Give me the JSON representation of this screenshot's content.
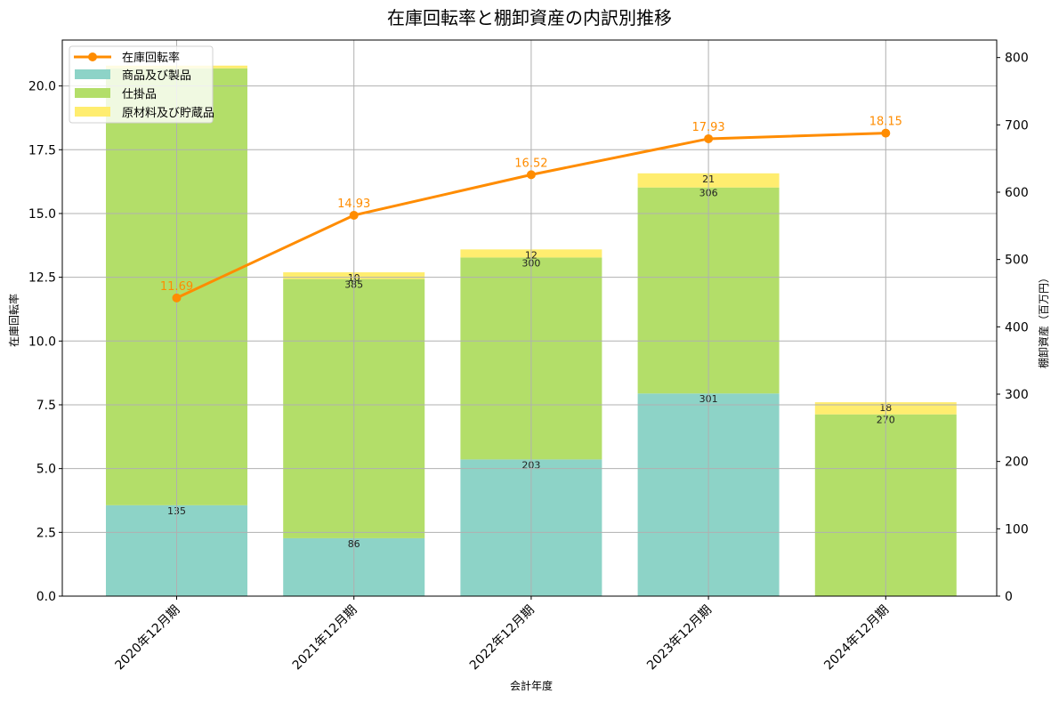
{
  "chart_data": {
    "type": "bar+line",
    "title": "在庫回転率と棚卸資産の内訳別推移",
    "xlabel": "会計年度",
    "ylabel_left": "在庫回転率",
    "ylabel_right": "棚卸資産（百万円）",
    "categories": [
      "2020年12月期",
      "2021年12月期",
      "2022年12月期",
      "2023年12月期",
      "2024年12月期"
    ],
    "bar_series": [
      {
        "name": "商品及び製品",
        "color": "#8dd3c7",
        "values": [
          135,
          86,
          203,
          301,
          0
        ],
        "labels": [
          "135",
          "86",
          "203",
          "301",
          ""
        ]
      },
      {
        "name": "仕掛品",
        "color": "#b3de69",
        "values": [
          649,
          385,
          300,
          306,
          270
        ],
        "labels": [
          "",
          "385",
          "300",
          "306",
          "270"
        ]
      },
      {
        "name": "原材料及び貯蔵品",
        "color": "#ffed6f",
        "values": [
          4,
          10,
          12,
          21,
          18
        ],
        "labels": [
          "",
          "10",
          "12",
          "21",
          "18"
        ]
      }
    ],
    "line_series": {
      "name": "在庫回転率",
      "color": "#ff8c00",
      "values": [
        11.69,
        14.93,
        16.52,
        17.93,
        18.15
      ],
      "labels": [
        "11.69",
        "14.93",
        "16.52",
        "17.93",
        "18.15"
      ]
    },
    "ylim_left": [
      0,
      21.8
    ],
    "ylim_right": [
      0,
      826
    ],
    "yticks_left": [
      "0.0",
      "2.5",
      "5.0",
      "7.5",
      "10.0",
      "12.5",
      "15.0",
      "17.5",
      "20.0"
    ],
    "yticks_right": [
      "0",
      "100",
      "200",
      "300",
      "400",
      "500",
      "600",
      "700",
      "800"
    ],
    "grid": true,
    "legend_position": "upper left"
  },
  "legend": {
    "items": [
      "在庫回転率",
      "商品及び製品",
      "仕掛品",
      "原材料及び貯蔵品"
    ]
  }
}
